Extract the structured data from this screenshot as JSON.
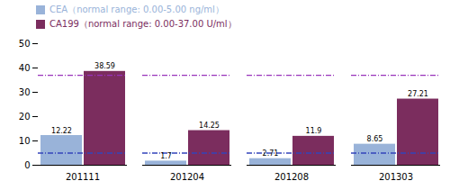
{
  "chart_data": {
    "type": "bar",
    "categories": [
      "201111",
      "201204",
      "201208",
      "201303"
    ],
    "series": [
      {
        "name": "CEA（normal range: 0.00-5.00 ng/ml）",
        "color": "#99b3d9",
        "values": [
          12.22,
          1.7,
          2.71,
          8.65
        ]
      },
      {
        "name": "CA199（normal range: 0.00-37.00 U/ml）",
        "color": "#7b2d5e",
        "values": [
          38.59,
          14.25,
          11.9,
          27.21
        ]
      }
    ],
    "reference_lines": [
      {
        "value": 37,
        "color": "#9933bb",
        "line_style": "dashdot"
      },
      {
        "value": 5,
        "color": "#3344bb",
        "line_style": "dashdot"
      }
    ],
    "ylim": [
      0,
      50
    ],
    "yticks": [
      0,
      10,
      20,
      30,
      40,
      50
    ],
    "data_labels": true,
    "grid": false,
    "legend": "upper left"
  }
}
